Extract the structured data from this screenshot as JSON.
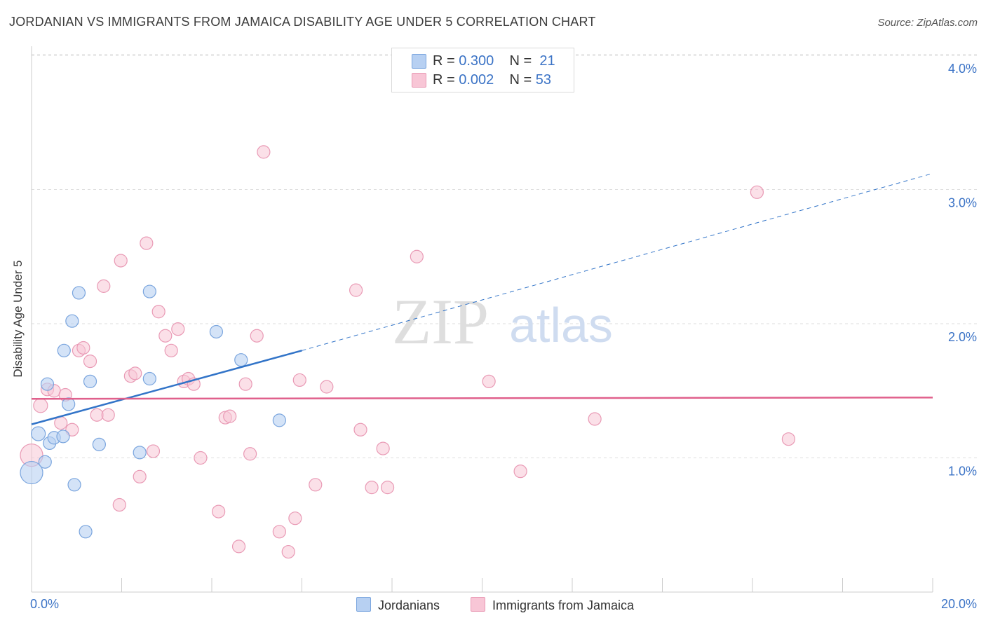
{
  "title": "JORDANIAN VS IMMIGRANTS FROM JAMAICA DISABILITY AGE UNDER 5 CORRELATION CHART",
  "source": "Source: ZipAtlas.com",
  "watermark": {
    "zip": "ZIP",
    "atlas": "atlas"
  },
  "legend": {
    "jordanians": {
      "r_label": "R =",
      "r_value": "0.300",
      "n_label": "N =",
      "n_value": "21"
    },
    "jamaica": {
      "r_label": "R =",
      "r_value": "0.002",
      "n_label": "N =",
      "n_value": "53"
    }
  },
  "bottom_legend": {
    "jordanians": "Jordanians",
    "jamaica": "Immigrants from Jamaica"
  },
  "x_axis": {
    "min_label": "0.0%",
    "max_label": "20.0%"
  },
  "colors": {
    "blue_fill": "#b7d0f2",
    "blue_stroke": "#7aa5de",
    "blue_line": "#3274c8",
    "pink_fill": "#f8c6d6",
    "pink_stroke": "#e99ab5",
    "pink_line": "#e0608c",
    "tick_label": "#3b73c6",
    "grid": "#dddddd"
  },
  "chart_data": {
    "type": "scatter",
    "title": "JORDANIAN VS IMMIGRANTS FROM JAMAICA DISABILITY AGE UNDER 5 CORRELATION CHART",
    "xlabel": "",
    "ylabel": "Disability Age Under 5",
    "xlim": [
      0,
      20
    ],
    "ylim": [
      0,
      4.15
    ],
    "y_ticks": [
      1,
      2,
      3,
      4
    ],
    "y_tick_labels": [
      "1.0%",
      "2.0%",
      "3.0%",
      "4.0%"
    ],
    "x_tick_labels": [
      "0.0%",
      "20.0%"
    ],
    "series": [
      {
        "name": "Jordanians",
        "R": 0.3,
        "N": 21,
        "points": [
          [
            0.0,
            0.89,
            16
          ],
          [
            0.15,
            1.18,
            10
          ],
          [
            0.3,
            0.97,
            9
          ],
          [
            0.35,
            1.55,
            9
          ],
          [
            0.4,
            1.11,
            9
          ],
          [
            0.5,
            1.15,
            9
          ],
          [
            0.7,
            1.16,
            9
          ],
          [
            0.72,
            1.8,
            9
          ],
          [
            0.82,
            1.4,
            9
          ],
          [
            0.9,
            2.02,
            9
          ],
          [
            0.95,
            0.8,
            9
          ],
          [
            1.05,
            2.23,
            9
          ],
          [
            1.2,
            0.45,
            9
          ],
          [
            1.3,
            1.57,
            9
          ],
          [
            1.5,
            1.1,
            9
          ],
          [
            2.4,
            1.04,
            9
          ],
          [
            2.62,
            2.24,
            9
          ],
          [
            2.62,
            1.59,
            9
          ],
          [
            4.1,
            1.94,
            9
          ],
          [
            4.65,
            1.73,
            9
          ],
          [
            5.5,
            1.28,
            9
          ]
        ],
        "trend": {
          "x0": 0,
          "y0": 1.25,
          "x1": 6.0,
          "y1": 1.8,
          "dash_x1": 20,
          "dash_y1": 3.12
        }
      },
      {
        "name": "Immigrants from Jamaica",
        "R": 0.002,
        "N": 53,
        "points": [
          [
            0.0,
            1.02,
            16
          ],
          [
            0.2,
            1.39,
            10
          ],
          [
            0.35,
            1.51,
            9
          ],
          [
            0.5,
            1.5,
            9
          ],
          [
            0.65,
            1.26,
            9
          ],
          [
            0.75,
            1.47,
            9
          ],
          [
            0.9,
            1.21,
            9
          ],
          [
            1.05,
            1.8,
            9
          ],
          [
            1.15,
            1.82,
            9
          ],
          [
            1.3,
            1.72,
            9
          ],
          [
            1.45,
            1.32,
            9
          ],
          [
            1.6,
            2.28,
            9
          ],
          [
            1.7,
            1.32,
            9
          ],
          [
            1.95,
            0.65,
            9
          ],
          [
            1.98,
            2.47,
            9
          ],
          [
            2.2,
            1.61,
            9
          ],
          [
            2.3,
            1.63,
            9
          ],
          [
            2.4,
            0.86,
            9
          ],
          [
            2.55,
            2.6,
            9
          ],
          [
            2.7,
            1.05,
            9
          ],
          [
            2.82,
            2.09,
            9
          ],
          [
            2.97,
            1.91,
            9
          ],
          [
            3.1,
            1.8,
            9
          ],
          [
            3.25,
            1.96,
            9
          ],
          [
            3.38,
            1.57,
            9
          ],
          [
            3.48,
            1.59,
            9
          ],
          [
            3.6,
            1.55,
            9
          ],
          [
            3.75,
            1.0,
            9
          ],
          [
            4.15,
            0.6,
            9
          ],
          [
            4.3,
            1.3,
            9
          ],
          [
            4.4,
            1.31,
            9
          ],
          [
            4.6,
            0.34,
            9
          ],
          [
            4.75,
            1.55,
            9
          ],
          [
            4.85,
            1.03,
            9
          ],
          [
            5.0,
            1.91,
            9
          ],
          [
            5.15,
            3.28,
            9
          ],
          [
            5.5,
            0.45,
            9
          ],
          [
            5.7,
            0.3,
            9
          ],
          [
            5.85,
            0.55,
            9
          ],
          [
            5.95,
            1.58,
            9
          ],
          [
            6.3,
            0.8,
            9
          ],
          [
            6.55,
            1.53,
            9
          ],
          [
            7.2,
            2.25,
            9
          ],
          [
            7.3,
            1.21,
            9
          ],
          [
            7.55,
            0.78,
            9
          ],
          [
            7.8,
            1.07,
            9
          ],
          [
            7.9,
            0.78,
            9
          ],
          [
            8.55,
            2.5,
            9
          ],
          [
            10.15,
            1.57,
            9
          ],
          [
            10.85,
            0.9,
            9
          ],
          [
            12.5,
            1.29,
            9
          ],
          [
            16.1,
            2.98,
            9
          ],
          [
            16.8,
            1.14,
            9
          ]
        ],
        "trend": {
          "x0": 0,
          "y0": 1.44,
          "x1": 20,
          "y1": 1.45
        }
      }
    ]
  }
}
